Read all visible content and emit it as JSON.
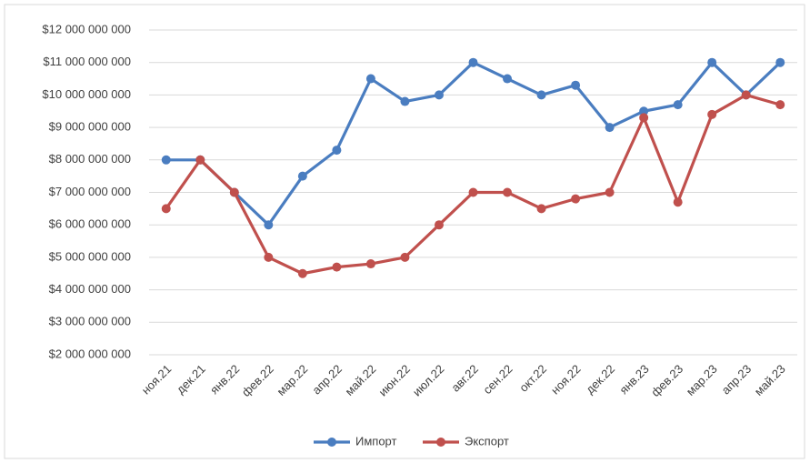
{
  "chart_data": {
    "type": "line",
    "categories": [
      "ноя.21",
      "дек.21",
      "янв.22",
      "фев.22",
      "мар.22",
      "апр.22",
      "май.22",
      "июн.22",
      "июл.22",
      "авг.22",
      "сен.22",
      "окт.22",
      "ноя.22",
      "дек.22",
      "янв.23",
      "фев.23",
      "мар.23",
      "апр.23",
      "май.23"
    ],
    "series": [
      {
        "name": "Импорт",
        "color": "#4a7dc0",
        "values": [
          8000000000,
          8000000000,
          7000000000,
          6000000000,
          7500000000,
          8300000000,
          10500000000,
          9800000000,
          10000000000,
          11000000000,
          10500000000,
          10000000000,
          10300000000,
          9000000000,
          9500000000,
          9700000000,
          11000000000,
          10000000000,
          11000000000
        ]
      },
      {
        "name": "Экспорт",
        "color": "#c0504d",
        "values": [
          6500000000,
          8000000000,
          7000000000,
          5000000000,
          4500000000,
          4700000000,
          4800000000,
          5000000000,
          6000000000,
          7000000000,
          7000000000,
          6500000000,
          6800000000,
          7000000000,
          9300000000,
          6700000000,
          9400000000,
          10000000000,
          9700000000
        ]
      }
    ],
    "ylim": [
      2000000000,
      12000000000
    ],
    "yticks": [
      {
        "value": 2000000000,
        "label": "$2 000 000 000"
      },
      {
        "value": 3000000000,
        "label": "$3 000 000 000"
      },
      {
        "value": 4000000000,
        "label": "$4 000 000 000"
      },
      {
        "value": 5000000000,
        "label": "$5 000 000 000"
      },
      {
        "value": 6000000000,
        "label": "$6 000 000 000"
      },
      {
        "value": 7000000000,
        "label": "$7 000 000 000"
      },
      {
        "value": 8000000000,
        "label": "$8 000 000 000"
      },
      {
        "value": 9000000000,
        "label": "$9 000 000 000"
      },
      {
        "value": 10000000000,
        "label": "$10 000 000 000"
      },
      {
        "value": 11000000000,
        "label": "$11 000 000 000"
      },
      {
        "value": 12000000000,
        "label": "$12 000 000 000"
      }
    ],
    "grid": true,
    "legend": "bottom"
  }
}
